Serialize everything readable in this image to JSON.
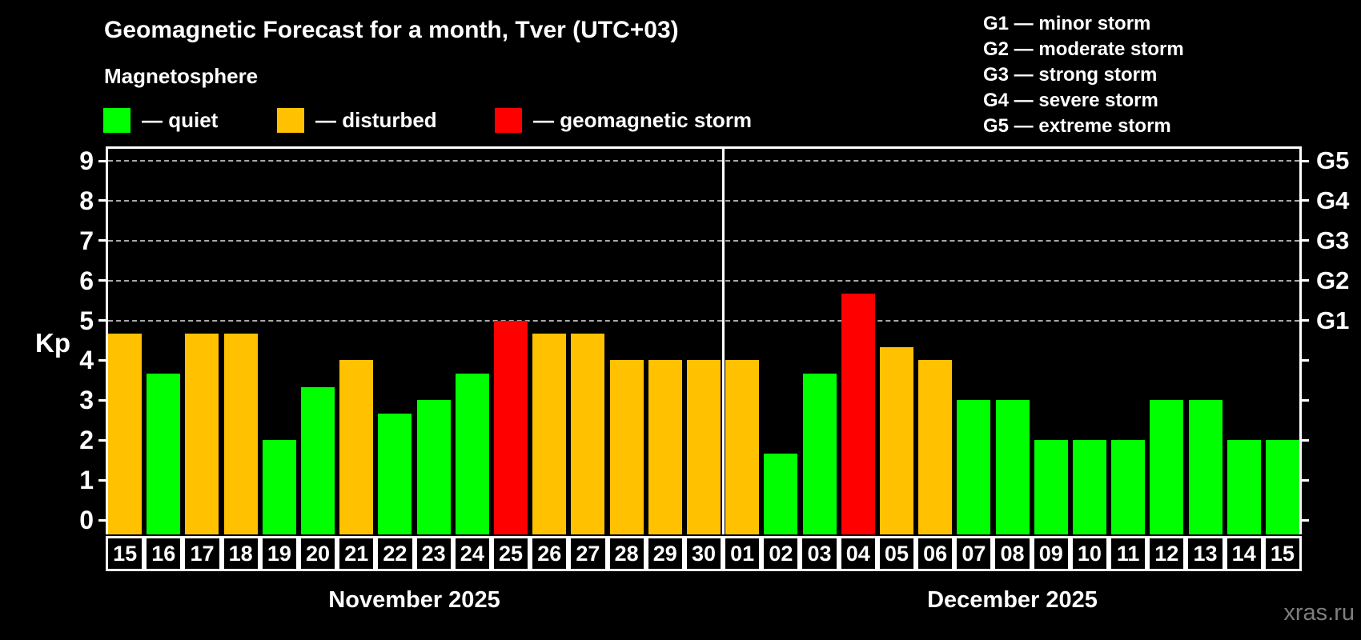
{
  "watermark": "xras.ru",
  "chart_data": {
    "type": "bar",
    "title": "Geomagnetic Forecast for a month, Tver (UTC+03)",
    "subtitle": "Magnetosphere",
    "xlabel": "",
    "ylabel": "Kp",
    "ylim": [
      0,
      9.4
    ],
    "yticks": [
      0,
      1,
      2,
      3,
      4,
      5,
      6,
      7,
      8,
      9
    ],
    "gridlines": [
      5,
      6,
      7,
      8,
      9
    ],
    "grid_style": "dashed",
    "legend_position": "top-left",
    "legend": {
      "items": [
        {
          "name": "quiet",
          "label": "— quiet",
          "color": "#00ff00"
        },
        {
          "name": "disturbed",
          "label": "— disturbed",
          "color": "#ffc100"
        },
        {
          "name": "storm",
          "label": "— geomagnetic storm",
          "color": "#ff0000"
        }
      ]
    },
    "storm_scale_legend": [
      "G1 — minor storm",
      "G2 — moderate storm",
      "G3 — strong storm",
      "G4 — severe storm",
      "G5 — extreme storm"
    ],
    "g_labels": [
      {
        "value": 5,
        "label": "G1"
      },
      {
        "value": 6,
        "label": "G2"
      },
      {
        "value": 7,
        "label": "G3"
      },
      {
        "value": 8,
        "label": "G4"
      },
      {
        "value": 9,
        "label": "G5"
      }
    ],
    "status_colors": {
      "quiet": "#00ff00",
      "disturbed": "#ffc100",
      "storm": "#ff0000"
    },
    "months": [
      {
        "label": "November 2025",
        "days": [
          {
            "day": "15",
            "kp": 4.67,
            "status": "disturbed"
          },
          {
            "day": "16",
            "kp": 3.67,
            "status": "quiet"
          },
          {
            "day": "17",
            "kp": 4.67,
            "status": "disturbed"
          },
          {
            "day": "18",
            "kp": 4.67,
            "status": "disturbed"
          },
          {
            "day": "19",
            "kp": 2.0,
            "status": "quiet"
          },
          {
            "day": "20",
            "kp": 3.33,
            "status": "quiet"
          },
          {
            "day": "21",
            "kp": 4.0,
            "status": "disturbed"
          },
          {
            "day": "22",
            "kp": 2.67,
            "status": "quiet"
          },
          {
            "day": "23",
            "kp": 3.0,
            "status": "quiet"
          },
          {
            "day": "24",
            "kp": 3.67,
            "status": "quiet"
          },
          {
            "day": "25",
            "kp": 5.0,
            "status": "storm"
          },
          {
            "day": "26",
            "kp": 4.67,
            "status": "disturbed"
          },
          {
            "day": "27",
            "kp": 4.67,
            "status": "disturbed"
          },
          {
            "day": "28",
            "kp": 4.0,
            "status": "disturbed"
          },
          {
            "day": "29",
            "kp": 4.0,
            "status": "disturbed"
          },
          {
            "day": "30",
            "kp": 4.0,
            "status": "disturbed"
          }
        ]
      },
      {
        "label": "December 2025",
        "days": [
          {
            "day": "01",
            "kp": 4.0,
            "status": "disturbed"
          },
          {
            "day": "02",
            "kp": 1.67,
            "status": "quiet"
          },
          {
            "day": "03",
            "kp": 3.67,
            "status": "quiet"
          },
          {
            "day": "04",
            "kp": 5.67,
            "status": "storm"
          },
          {
            "day": "05",
            "kp": 4.33,
            "status": "disturbed"
          },
          {
            "day": "06",
            "kp": 4.0,
            "status": "disturbed"
          },
          {
            "day": "07",
            "kp": 3.0,
            "status": "quiet"
          },
          {
            "day": "08",
            "kp": 3.0,
            "status": "quiet"
          },
          {
            "day": "09",
            "kp": 2.0,
            "status": "quiet"
          },
          {
            "day": "10",
            "kp": 2.0,
            "status": "quiet"
          },
          {
            "day": "11",
            "kp": 2.0,
            "status": "quiet"
          },
          {
            "day": "12",
            "kp": 3.0,
            "status": "quiet"
          },
          {
            "day": "13",
            "kp": 3.0,
            "status": "quiet"
          },
          {
            "day": "14",
            "kp": 2.0,
            "status": "quiet"
          },
          {
            "day": "15",
            "kp": 2.0,
            "status": "quiet"
          }
        ]
      }
    ]
  }
}
